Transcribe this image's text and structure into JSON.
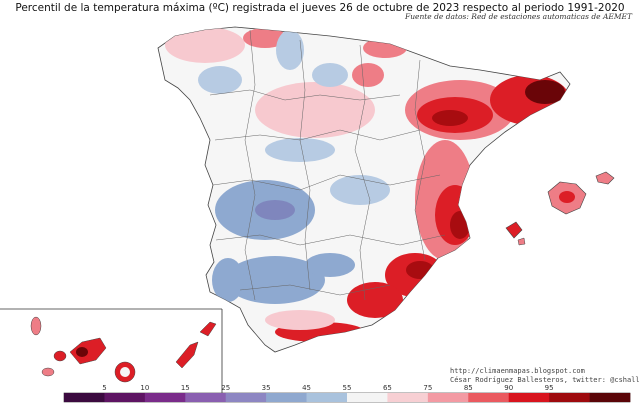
{
  "title": "Percentil de la temperatura máxima (ºC) registrada el jueves 26 de octubre de 2023 respecto al periodo 1991-2020",
  "source": "Fuente de datos: Red de estaciones automaticas de AEMET",
  "credits": {
    "url": "http://climaenmapas.blogspot.com",
    "author": "César Rodríguez Ballesteros, twitter: @cshallesteros"
  },
  "legend": {
    "ticks": [
      "5",
      "10",
      "15",
      "25",
      "35",
      "45",
      "55",
      "65",
      "75",
      "85",
      "90",
      "95"
    ],
    "colors": [
      "#3b0a3f",
      "#5e1463",
      "#7a2b8a",
      "#8a5fb0",
      "#8d86c2",
      "#8fa8cf",
      "#a9c2dd",
      "#f4f4f4",
      "#f7cfd3",
      "#f39aa3",
      "#ea5a60",
      "#d8141e",
      "#9e0a0e",
      "#5a0508"
    ]
  },
  "map": {
    "region": "Península Ibérica, Baleares y Canarias",
    "colors": {
      "land": "#f6f6f6",
      "border": "#555555",
      "cool_light": "#b7cbe3",
      "cool": "#8ea9d0",
      "cool_dark": "#7f86bd",
      "warm_light": "#f7c9cf",
      "warm": "#ee7d86",
      "hot": "#dc1e26",
      "very_hot": "#a80c10",
      "extreme": "#6a0508"
    }
  }
}
